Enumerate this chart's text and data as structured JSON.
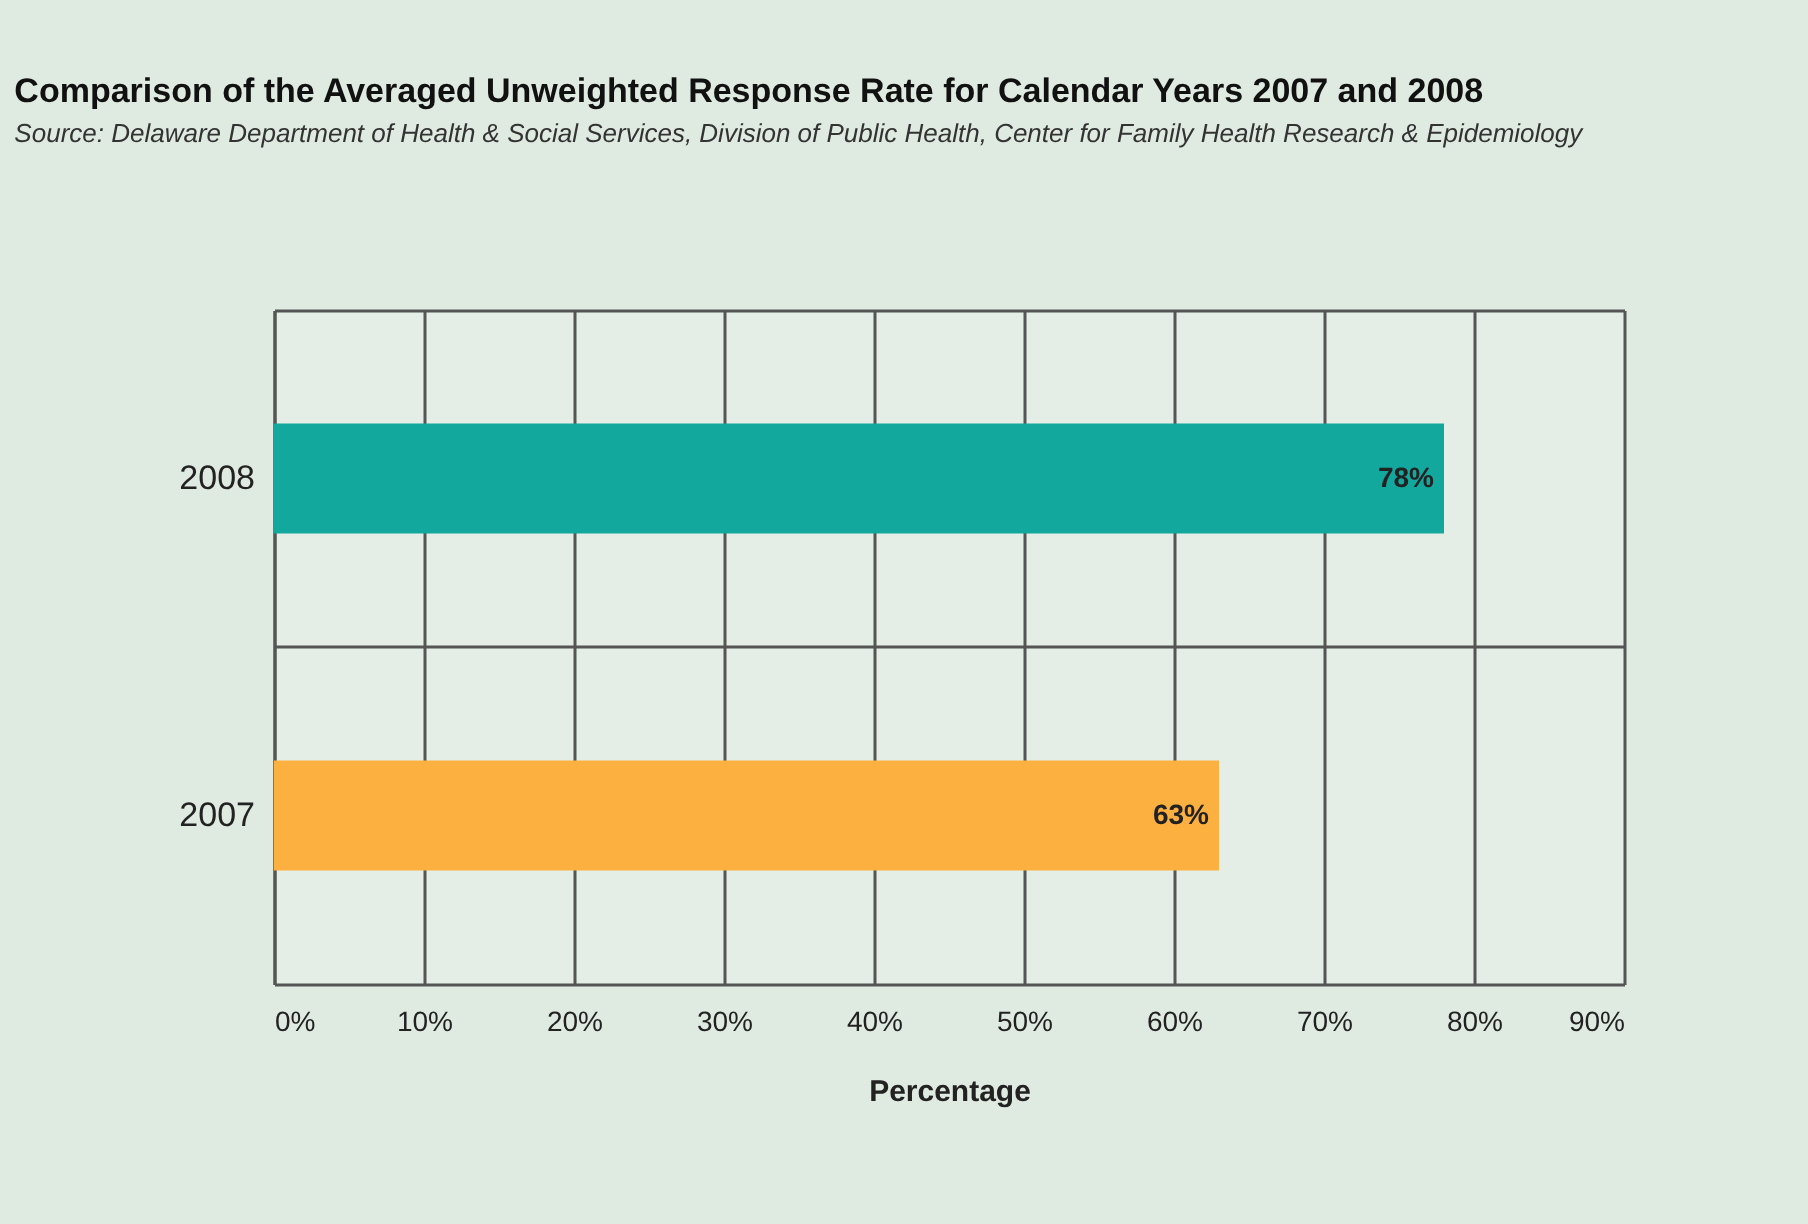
{
  "chart_data": {
    "type": "bar",
    "orientation": "horizontal",
    "title": "Comparison of the Averaged Unweighted Response Rate for Calendar Years 2007 and 2008",
    "annotations": [
      "Source: Delaware Department of Health & Social Services, Division of Public Health, Center for Family Health Research & Epidemiology"
    ],
    "categories": [
      "2008",
      "2007"
    ],
    "values": [
      78,
      63
    ],
    "colors": [
      "#13a89e",
      "#fbb040"
    ],
    "xlabel": "Percentage",
    "xlim": [
      0,
      90
    ],
    "xticks": [
      {
        "value": 0,
        "label": "0%"
      },
      {
        "value": 10,
        "label": "10%"
      },
      {
        "value": 20,
        "label": "20%"
      },
      {
        "value": 30,
        "label": "30%"
      },
      {
        "value": 40,
        "label": "40%"
      },
      {
        "value": 50,
        "label": "50%"
      },
      {
        "value": 60,
        "label": "60%"
      },
      {
        "value": 70,
        "label": "70%"
      },
      {
        "value": 80,
        "label": "80%"
      },
      {
        "value": 90,
        "label": "90%"
      }
    ],
    "value_labels": [
      "78%",
      "63%"
    ],
    "grid": true
  }
}
